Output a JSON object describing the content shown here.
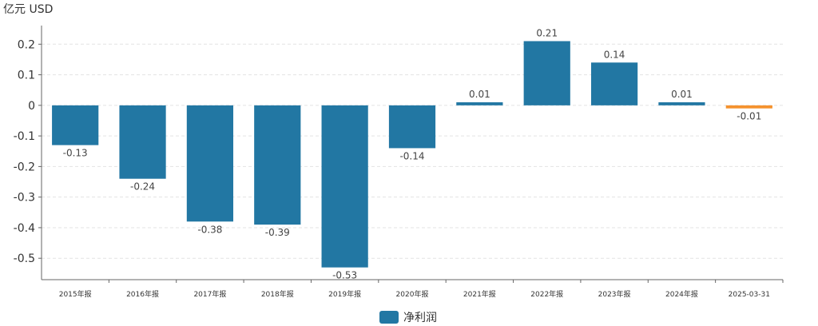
{
  "chart_data": {
    "type": "bar",
    "unit_label": "亿元  USD",
    "categories": [
      "2015年报",
      "2016年报",
      "2017年报",
      "2018年报",
      "2019年报",
      "2020年报",
      "2021年报",
      "2022年报",
      "2023年报",
      "2024年报",
      "2025-03-31"
    ],
    "series": [
      {
        "name": "净利润",
        "values": [
          -0.13,
          -0.24,
          -0.38,
          -0.39,
          -0.53,
          -0.14,
          0.01,
          0.21,
          0.14,
          0.01,
          -0.01
        ],
        "labels": [
          "-0.13",
          "-0.24",
          "-0.38",
          "-0.39",
          "-0.53",
          "-0.14",
          "0.01",
          "0.21",
          "0.14",
          "0.01",
          "-0.01"
        ]
      }
    ],
    "yticks": [
      0.2,
      0.1,
      0,
      -0.1,
      -0.2,
      -0.3,
      -0.4,
      -0.5
    ],
    "ytick_labels": [
      "0.2",
      "0.1",
      "0",
      "-0.1",
      "-0.2",
      "-0.3",
      "-0.4",
      "-0.5"
    ],
    "ylim": [
      -0.57,
      0.24
    ],
    "colors": {
      "bar": "#2277a3",
      "highlight_bar": "#f5922d",
      "grid": "#e3e3e3",
      "axis": "#666666"
    },
    "highlight_index": 10,
    "grid": true,
    "legend_position": "bottom-center"
  }
}
